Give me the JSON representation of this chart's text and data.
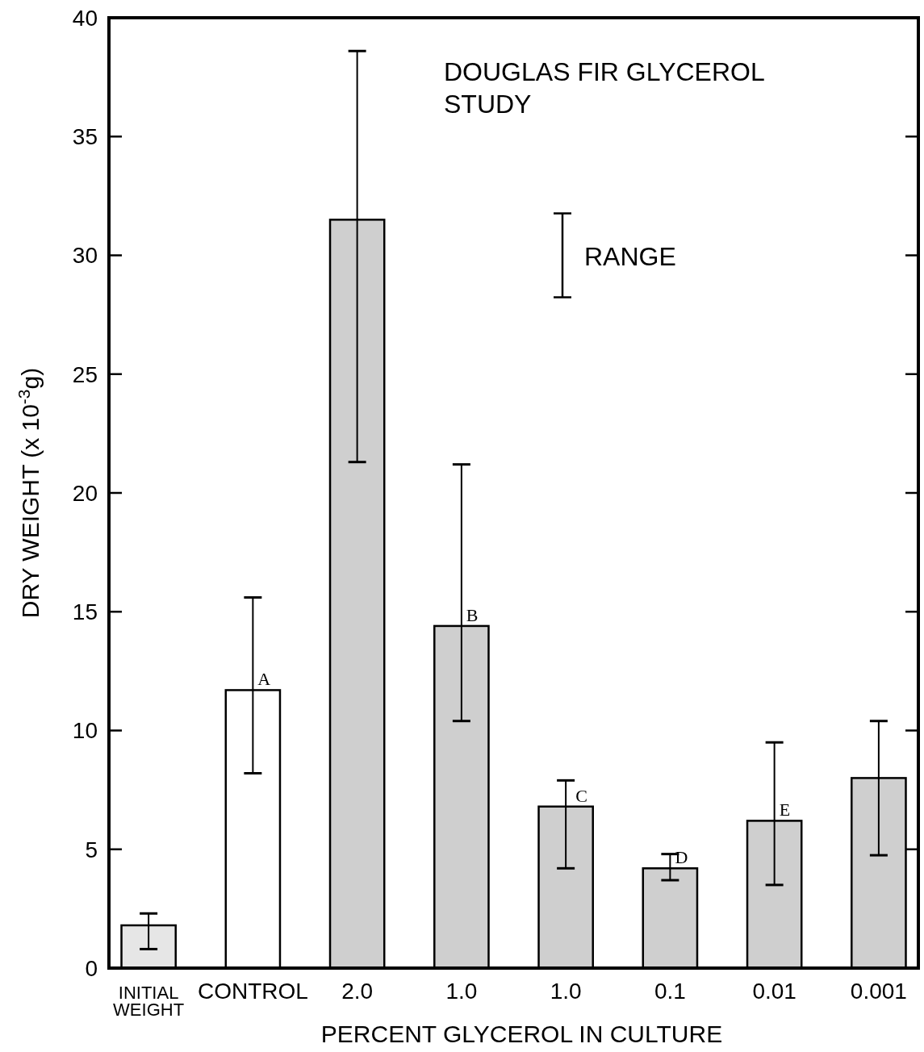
{
  "chart_data": {
    "type": "bar",
    "title": "DOUGLAS FIR GLYCEROL\nSTUDY",
    "xlabel": "PERCENT GLYCEROL IN CULTURE",
    "ylabel": "DRY WEIGHT (x 10$^{-3}$g)",
    "categories": [
      "INITIAL\nWEIGHT",
      "CONTROL",
      "2.0",
      "1.0",
      "1.0",
      "0.1",
      "0.01",
      "0.001"
    ],
    "values": [
      1.8,
      11.7,
      31.5,
      14.4,
      6.8,
      4.2,
      6.2,
      8.0
    ],
    "colors": [
      "#e6e6e6",
      "#ffffff",
      "#cfcfcf",
      "#cfcfcf",
      "#cfcfcf",
      "#cfcfcf",
      "#cfcfcf",
      "#cfcfcf"
    ],
    "errors": [
      [
        0.8,
        2.3
      ],
      [
        8.2,
        15.6
      ],
      [
        21.3,
        38.6
      ],
      [
        10.4,
        21.2
      ],
      [
        4.2,
        7.9
      ],
      [
        3.7,
        4.8
      ],
      [
        3.5,
        9.5
      ],
      [
        4.75,
        10.4
      ]
    ],
    "ylim": [
      0,
      40
    ],
    "yticks": [
      0,
      5,
      10,
      15,
      20,
      25,
      30,
      35,
      40
    ],
    "grid": false,
    "annotations": [
      "RANGE",
      {
        "text": "A",
        "x": "CONTROL",
        "y": 11.7
      },
      {
        "text": "B",
        "x": "1.0",
        "y": 14.4
      },
      "C",
      {
        "text": "D",
        "x": "0.1",
        "y": 4.2
      },
      {
        "text": "E",
        "x": "0.01",
        "y": 6.2
      }
    ]
  }
}
